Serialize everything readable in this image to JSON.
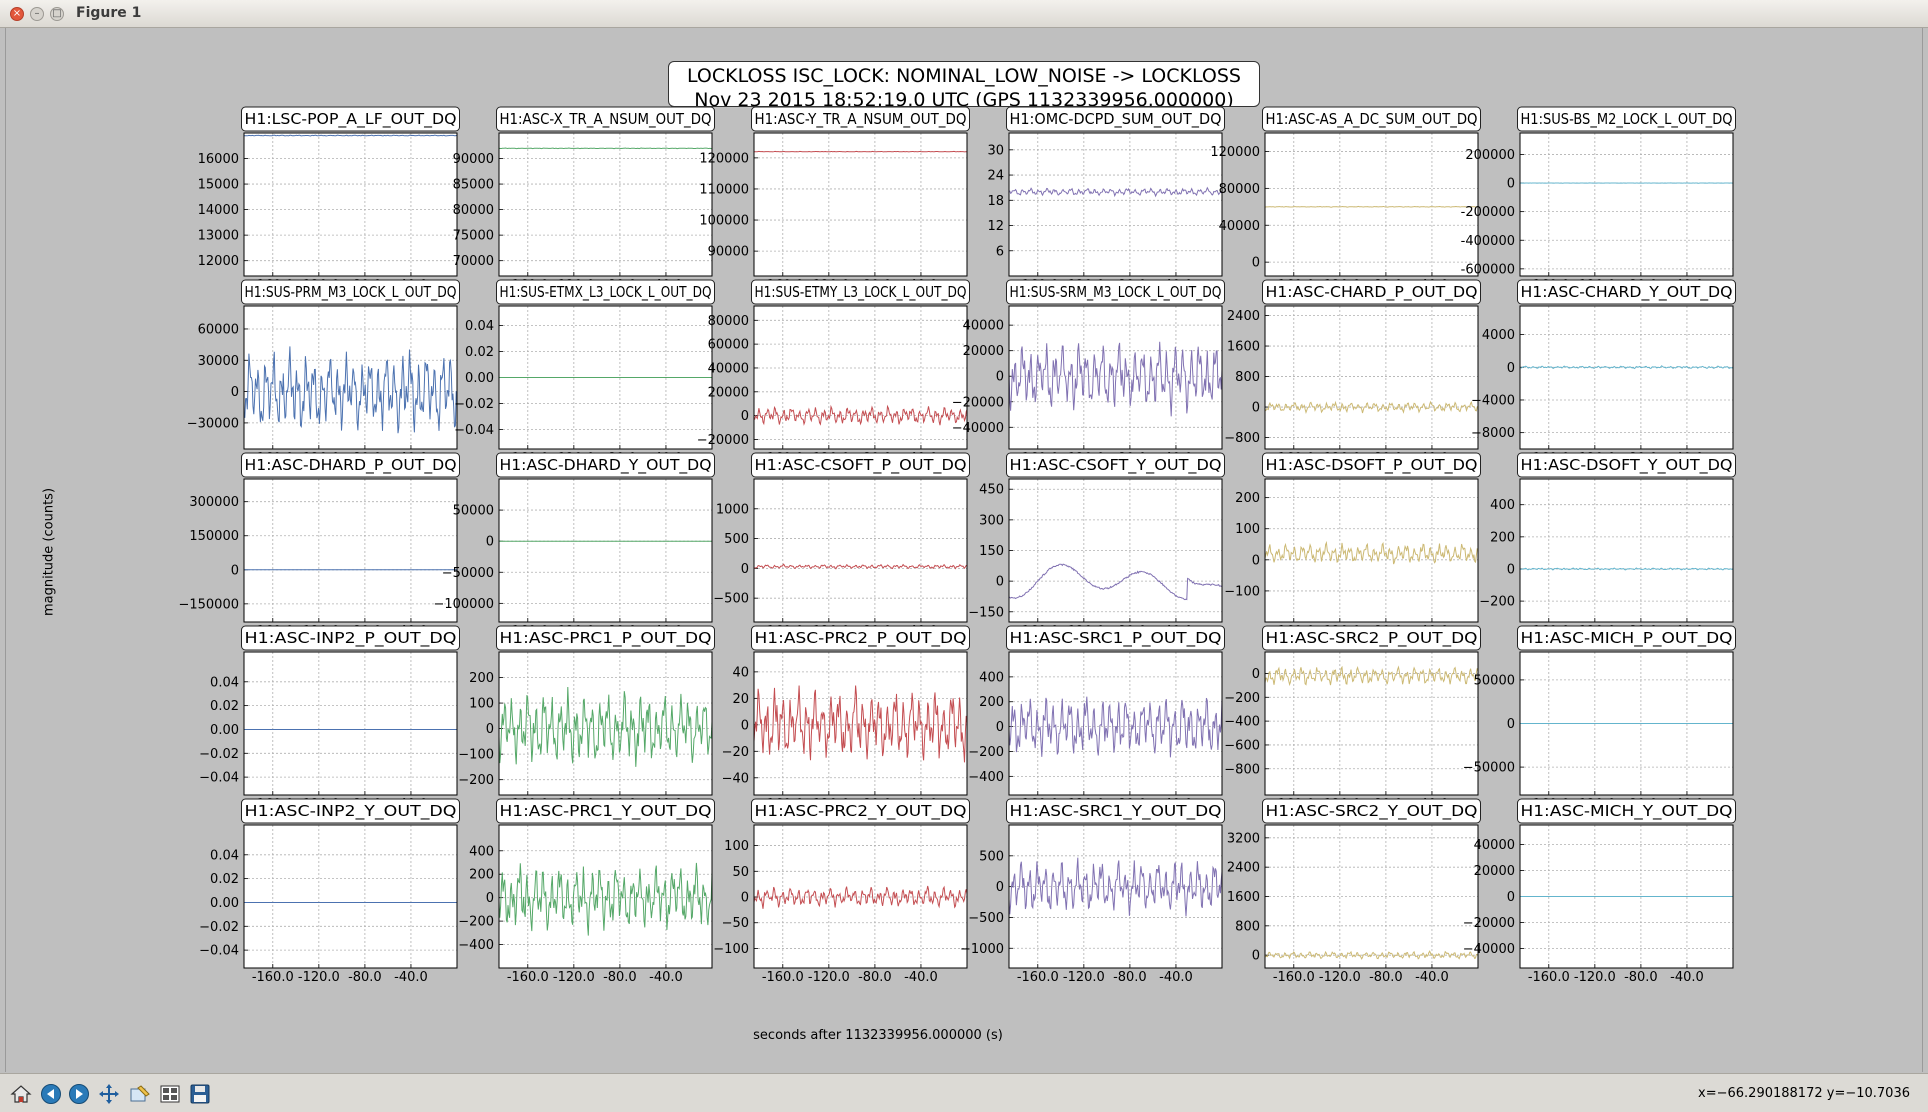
{
  "window": {
    "title": "Figure 1"
  },
  "figure": {
    "title_line1": "LOCKLOSS ISC_LOCK: NOMINAL_LOW_NOISE -> LOCKLOSS",
    "title_line2": "Nov 23 2015 18:52:19.0 UTC (GPS 1132339956.000000)",
    "ylabel": "magnitude (counts)",
    "xlabel": "seconds after 1132339956.000000 (s)"
  },
  "status": {
    "coords": "x=−66.290188172 y=−10.7036"
  },
  "toolbar": {
    "buttons": [
      {
        "name": "home-button",
        "icon": "home-icon"
      },
      {
        "name": "back-button",
        "icon": "back-arrow-icon"
      },
      {
        "name": "forward-button",
        "icon": "forward-arrow-icon"
      },
      {
        "name": "pan-button",
        "icon": "pan-arrows-icon"
      },
      {
        "name": "zoom-button",
        "icon": "zoom-rect-icon"
      },
      {
        "name": "subplots-button",
        "icon": "subplots-config-icon"
      },
      {
        "name": "save-button",
        "icon": "floppy-save-icon"
      }
    ]
  },
  "chart_data": [
    {
      "type": "line",
      "title": "H1:LSC-POP_A_LF_OUT_DQ",
      "color": "#4c72b0",
      "xticks": [
        "-160.0",
        "-120.0",
        "-80.0",
        "-40.0"
      ],
      "yticks": [
        "16000",
        "15000",
        "14000",
        "13000",
        "12000"
      ],
      "ytick_values": [
        16000,
        15000,
        14000,
        13000,
        12000
      ],
      "ylim": [
        11400,
        17000
      ],
      "level": 16900,
      "amplitude": 40,
      "noise": 0.3
    },
    {
      "type": "line",
      "title": "H1:ASC-X_TR_A_NSUM_OUT_DQ",
      "color": "#55a868",
      "xticks": [
        "-160.0",
        "-120.0",
        "-80.0",
        "-40.0"
      ],
      "yticks": [
        "90000",
        "85000",
        "80000",
        "75000",
        "70000"
      ],
      "ytick_values": [
        90000,
        85000,
        80000,
        75000,
        70000
      ],
      "ylim": [
        67000,
        95000
      ],
      "level": 92000,
      "amplitude": 150,
      "noise": 0.3
    },
    {
      "type": "line",
      "title": "H1:ASC-Y_TR_A_NSUM_OUT_DQ",
      "color": "#c44e52",
      "xticks": [
        "-160.0",
        "-120.0",
        "-80.0",
        "-40.0"
      ],
      "yticks": [
        "120000",
        "110000",
        "100000",
        "90000"
      ],
      "ytick_values": [
        120000,
        110000,
        100000,
        90000
      ],
      "ylim": [
        82000,
        128000
      ],
      "level": 122000,
      "amplitude": 200,
      "noise": 0.3
    },
    {
      "type": "line",
      "title": "H1:OMC-DCPD_SUM_OUT_DQ",
      "color": "#8172b2",
      "xticks": [
        "-160.0",
        "-120.0",
        "-80.0",
        "-40.0"
      ],
      "yticks": [
        "30",
        "24",
        "18",
        "12",
        "6"
      ],
      "ytick_values": [
        30,
        24,
        18,
        12,
        6
      ],
      "ylim": [
        0,
        34
      ],
      "level": 20,
      "amplitude": 0.8,
      "noise": 1.0
    },
    {
      "type": "line",
      "title": "H1:ASC-AS_A_DC_SUM_OUT_DQ",
      "color": "#ccb974",
      "xticks": [
        "-160.0",
        "-120.0",
        "-80.0",
        "-40.0"
      ],
      "yticks": [
        "120000",
        "80000",
        "40000",
        "0"
      ],
      "ytick_values": [
        120000,
        80000,
        40000,
        0
      ],
      "ylim": [
        -15000,
        140000
      ],
      "level": 60000,
      "amplitude": 800,
      "noise": 0.4
    },
    {
      "type": "line",
      "title": "H1:SUS-BS_M2_LOCK_L_OUT_DQ",
      "color": "#64b5cd",
      "xticks": [
        "-160.0",
        "-120.0",
        "-80.0",
        "-40.0"
      ],
      "yticks": [
        "200000",
        "0",
        "-200000",
        "-400000",
        "-600000"
      ],
      "ytick_values": [
        200000,
        0,
        -200000,
        -400000,
        -600000
      ],
      "ylim": [
        -650000,
        350000
      ],
      "level": 0,
      "amplitude": 2000,
      "noise": 0.3
    },
    {
      "type": "line",
      "title": "H1:SUS-PRM_M3_LOCK_L_OUT_DQ",
      "color": "#4c72b0",
      "xticks": [
        "-160.0",
        "-120.0",
        "-80.0",
        "-40.0"
      ],
      "yticks": [
        "60000",
        "30000",
        "0",
        "−30000"
      ],
      "ytick_values": [
        60000,
        30000,
        0,
        -30000
      ],
      "ylim": [
        -55000,
        82000
      ],
      "level": 0,
      "amplitude": 35000,
      "noise": 1.0
    },
    {
      "type": "line",
      "title": "H1:SUS-ETMX_L3_LOCK_L_OUT_DQ",
      "color": "#55a868",
      "xticks": [
        "-160.0",
        "-120.0",
        "-80.0",
        "-40.0"
      ],
      "yticks": [
        "0.04",
        "0.02",
        "0.00",
        "−0.02",
        "−0.04"
      ],
      "ytick_values": [
        0.04,
        0.02,
        0,
        -0.02,
        -0.04
      ],
      "ylim": [
        -0.055,
        0.055
      ],
      "level": 0,
      "amplitude": 0,
      "noise": 0
    },
    {
      "type": "line",
      "title": "H1:SUS-ETMY_L3_LOCK_L_OUT_DQ",
      "color": "#c44e52",
      "xticks": [
        "-160.0",
        "-120.0",
        "-80.0",
        "-40.0"
      ],
      "yticks": [
        "80000",
        "60000",
        "40000",
        "20000",
        "0",
        "−20000"
      ],
      "ytick_values": [
        80000,
        60000,
        40000,
        20000,
        0,
        -20000
      ],
      "ylim": [
        -28000,
        92000
      ],
      "level": 0,
      "amplitude": 7000,
      "noise": 1.0
    },
    {
      "type": "line",
      "title": "H1:SUS-SRM_M3_LOCK_L_OUT_DQ",
      "color": "#8172b2",
      "xticks": [
        "-160.0",
        "-120.0",
        "-80.0",
        "-40.0"
      ],
      "yticks": [
        "40000",
        "20000",
        "0",
        "−20000",
        "−40000"
      ],
      "ytick_values": [
        40000,
        20000,
        0,
        -20000,
        -40000
      ],
      "ylim": [
        -57000,
        55000
      ],
      "level": 0,
      "amplitude": 25000,
      "noise": 1.0
    },
    {
      "type": "line",
      "title": "H1:ASC-CHARD_P_OUT_DQ",
      "color": "#ccb974",
      "xticks": [
        "-160.0",
        "-120.0",
        "-80.0",
        "-40.0"
      ],
      "yticks": [
        "2400",
        "1600",
        "800",
        "0",
        "−800"
      ],
      "ytick_values": [
        2400,
        1600,
        800,
        0,
        -800
      ],
      "ylim": [
        -1100,
        2650
      ],
      "level": 0,
      "amplitude": 120,
      "noise": 1.0
    },
    {
      "type": "line",
      "title": "H1:ASC-CHARD_Y_OUT_DQ",
      "color": "#64b5cd",
      "xticks": [
        "-160.0",
        "-120.0",
        "-80.0",
        "-40.0"
      ],
      "yticks": [
        "4000",
        "0",
        "−4000",
        "−8000"
      ],
      "ytick_values": [
        4000,
        0,
        -4000,
        -8000
      ],
      "ylim": [
        -10000,
        7500
      ],
      "level": 0,
      "amplitude": 250,
      "noise": 0.5
    },
    {
      "type": "line",
      "title": "H1:ASC-DHARD_P_OUT_DQ",
      "color": "#4c72b0",
      "xticks": [
        "-160.0",
        "-120.0",
        "-80.0",
        "-40.0"
      ],
      "yticks": [
        "300000",
        "150000",
        "0",
        "−150000"
      ],
      "ytick_values": [
        300000,
        150000,
        0,
        -150000
      ],
      "ylim": [
        -230000,
        400000
      ],
      "level": 0,
      "amplitude": 0,
      "noise": 0
    },
    {
      "type": "line",
      "title": "H1:ASC-DHARD_Y_OUT_DQ",
      "color": "#55a868",
      "xticks": [
        "-160.0",
        "-120.0",
        "-80.0",
        "-40.0"
      ],
      "yticks": [
        "50000",
        "0",
        "−50000",
        "−100000"
      ],
      "ytick_values": [
        50000,
        0,
        -50000,
        -100000
      ],
      "ylim": [
        -130000,
        100000
      ],
      "level": 0,
      "amplitude": 0,
      "noise": 0
    },
    {
      "type": "line",
      "title": "H1:ASC-CSOFT_P_OUT_DQ",
      "color": "#c44e52",
      "xticks": [
        "-160.0",
        "-120.0",
        "-80.0",
        "-40.0"
      ],
      "yticks": [
        "1000",
        "500",
        "0",
        "−500"
      ],
      "ytick_values": [
        1000,
        500,
        0,
        -500
      ],
      "ylim": [
        -900,
        1500
      ],
      "level": 30,
      "amplitude": 60,
      "noise": 0.5
    },
    {
      "type": "line",
      "title": "H1:ASC-CSOFT_Y_OUT_DQ",
      "color": "#8172b2",
      "xticks": [
        "-160.0",
        "-120.0",
        "-80.0",
        "-40.0"
      ],
      "yticks": [
        "450",
        "300",
        "150",
        "0",
        "−150"
      ],
      "ytick_values": [
        450,
        300,
        150,
        0,
        -150
      ],
      "ylim": [
        -200,
        500
      ],
      "level": 0,
      "amplitude": 0,
      "noise": 0.5
    },
    {
      "type": "line",
      "title": "H1:ASC-DSOFT_P_OUT_DQ",
      "color": "#ccb974",
      "xticks": [
        "-160.0",
        "-120.0",
        "-80.0",
        "-40.0"
      ],
      "yticks": [
        "200",
        "100",
        "0",
        "−100"
      ],
      "ytick_values": [
        200,
        100,
        0,
        -100
      ],
      "ylim": [
        -200,
        260
      ],
      "level": 20,
      "amplitude": 30,
      "noise": 1.0
    },
    {
      "type": "line",
      "title": "H1:ASC-DSOFT_Y_OUT_DQ",
      "color": "#64b5cd",
      "xticks": [
        "-160.0",
        "-120.0",
        "-80.0",
        "-40.0"
      ],
      "yticks": [
        "400",
        "200",
        "0",
        "−200"
      ],
      "ytick_values": [
        400,
        200,
        0,
        -200
      ],
      "ylim": [
        -330,
        560
      ],
      "level": 0,
      "amplitude": 15,
      "noise": 0.3
    },
    {
      "type": "line",
      "title": "H1:ASC-INP2_P_OUT_DQ",
      "color": "#4c72b0",
      "xticks": [
        "-160.0",
        "-120.0",
        "-80.0",
        "-40.0"
      ],
      "yticks": [
        "0.04",
        "0.02",
        "0.00",
        "−0.02",
        "−0.04"
      ],
      "ytick_values": [
        0.04,
        0.02,
        0,
        -0.02,
        -0.04
      ],
      "ylim": [
        -0.055,
        0.065
      ],
      "level": 0,
      "amplitude": 0,
      "noise": 0
    },
    {
      "type": "line",
      "title": "H1:ASC-PRC1_P_OUT_DQ",
      "color": "#55a868",
      "xticks": [
        "-160.0",
        "-120.0",
        "-80.0",
        "-40.0"
      ],
      "yticks": [
        "200",
        "100",
        "0",
        "−100",
        "−200"
      ],
      "ytick_values": [
        200,
        100,
        0,
        -100,
        -200
      ],
      "ylim": [
        -260,
        300
      ],
      "level": 0,
      "amplitude": 130,
      "noise": 1.0
    },
    {
      "type": "line",
      "title": "H1:ASC-PRC2_P_OUT_DQ",
      "color": "#c44e52",
      "xticks": [
        "-160.0",
        "-120.0",
        "-80.0",
        "-40.0"
      ],
      "yticks": [
        "40",
        "20",
        "0",
        "−20",
        "−40"
      ],
      "ytick_values": [
        40,
        20,
        0,
        -20,
        -40
      ],
      "ylim": [
        -53,
        55
      ],
      "level": 0,
      "amplitude": 25,
      "noise": 1.0
    },
    {
      "type": "line",
      "title": "H1:ASC-SRC1_P_OUT_DQ",
      "color": "#8172b2",
      "xticks": [
        "-160.0",
        "-120.0",
        "-80.0",
        "-40.0"
      ],
      "yticks": [
        "400",
        "200",
        "0",
        "−200",
        "−400"
      ],
      "ytick_values": [
        400,
        200,
        0,
        -200,
        -400
      ],
      "ylim": [
        -550,
        600
      ],
      "level": 0,
      "amplitude": 230,
      "noise": 1.0
    },
    {
      "type": "line",
      "title": "H1:ASC-SRC2_P_OUT_DQ",
      "color": "#ccb974",
      "xticks": [
        "-160.0",
        "-120.0",
        "-80.0",
        "-40.0"
      ],
      "yticks": [
        "0",
        "−200",
        "−400",
        "−600",
        "−800"
      ],
      "ytick_values": [
        0,
        -200,
        -400,
        -600,
        -800
      ],
      "ylim": [
        -1020,
        180
      ],
      "level": -20,
      "amplitude": 70,
      "noise": 1.0
    },
    {
      "type": "line",
      "title": "H1:ASC-MICH_P_OUT_DQ",
      "color": "#64b5cd",
      "xticks": [
        "-160.0",
        "-120.0",
        "-80.0",
        "-40.0"
      ],
      "yticks": [
        "50000",
        "0",
        "−50000"
      ],
      "ytick_values": [
        50000,
        0,
        -50000
      ],
      "ylim": [
        -82000,
        82000
      ],
      "level": 0,
      "amplitude": 0,
      "noise": 0
    },
    {
      "type": "line",
      "title": "H1:ASC-INP2_Y_OUT_DQ",
      "color": "#4c72b0",
      "xticks": [
        "-160.0",
        "-120.0",
        "-80.0",
        "-40.0"
      ],
      "yticks": [
        "0.04",
        "0.02",
        "0.00",
        "−0.02",
        "−0.04"
      ],
      "ytick_values": [
        0.04,
        0.02,
        0,
        -0.02,
        -0.04
      ],
      "ylim": [
        -0.055,
        0.065
      ],
      "level": 0,
      "amplitude": 0,
      "noise": 0
    },
    {
      "type": "line",
      "title": "H1:ASC-PRC1_Y_OUT_DQ",
      "color": "#55a868",
      "xticks": [
        "-160.0",
        "-120.0",
        "-80.0",
        "-40.0"
      ],
      "yticks": [
        "400",
        "200",
        "0",
        "−200",
        "−400"
      ],
      "ytick_values": [
        400,
        200,
        0,
        -200,
        -400
      ],
      "ylim": [
        -600,
        620
      ],
      "level": 0,
      "amplitude": 260,
      "noise": 1.0
    },
    {
      "type": "line",
      "title": "H1:ASC-PRC2_Y_OUT_DQ",
      "color": "#c44e52",
      "xticks": [
        "-160.0",
        "-120.0",
        "-80.0",
        "-40.0"
      ],
      "yticks": [
        "100",
        "50",
        "0",
        "−50",
        "−100"
      ],
      "ytick_values": [
        100,
        50,
        0,
        -50,
        -100
      ],
      "ylim": [
        -138,
        140
      ],
      "level": 0,
      "amplitude": 30,
      "noise": 0.6
    },
    {
      "type": "line",
      "title": "H1:ASC-SRC1_Y_OUT_DQ",
      "color": "#8172b2",
      "xticks": [
        "-160.0",
        "-120.0",
        "-80.0",
        "-40.0"
      ],
      "yticks": [
        "500",
        "0",
        "−500",
        "−1000"
      ],
      "ytick_values": [
        500,
        0,
        -500,
        -1000
      ],
      "ylim": [
        -1320,
        1000
      ],
      "level": 0,
      "amplitude": 400,
      "noise": 1.0
    },
    {
      "type": "line",
      "title": "H1:ASC-SRC2_Y_OUT_DQ",
      "color": "#ccb974",
      "xticks": [
        "-160.0",
        "-120.0",
        "-80.0",
        "-40.0"
      ],
      "yticks": [
        "3200",
        "2400",
        "1600",
        "800",
        "0"
      ],
      "ytick_values": [
        3200,
        2400,
        1600,
        800,
        0
      ],
      "ylim": [
        -350,
        3550
      ],
      "level": 0,
      "amplitude": 90,
      "noise": 1.0
    },
    {
      "type": "line",
      "title": "H1:ASC-MICH_Y_OUT_DQ",
      "color": "#64b5cd",
      "xticks": [
        "-160.0",
        "-120.0",
        "-80.0",
        "-40.0"
      ],
      "yticks": [
        "40000",
        "20000",
        "0",
        "−20000",
        "−40000"
      ],
      "ytick_values": [
        40000,
        20000,
        0,
        -20000,
        -40000
      ],
      "ylim": [
        -55000,
        55000
      ],
      "level": 0,
      "amplitude": 0,
      "noise": 0
    }
  ]
}
